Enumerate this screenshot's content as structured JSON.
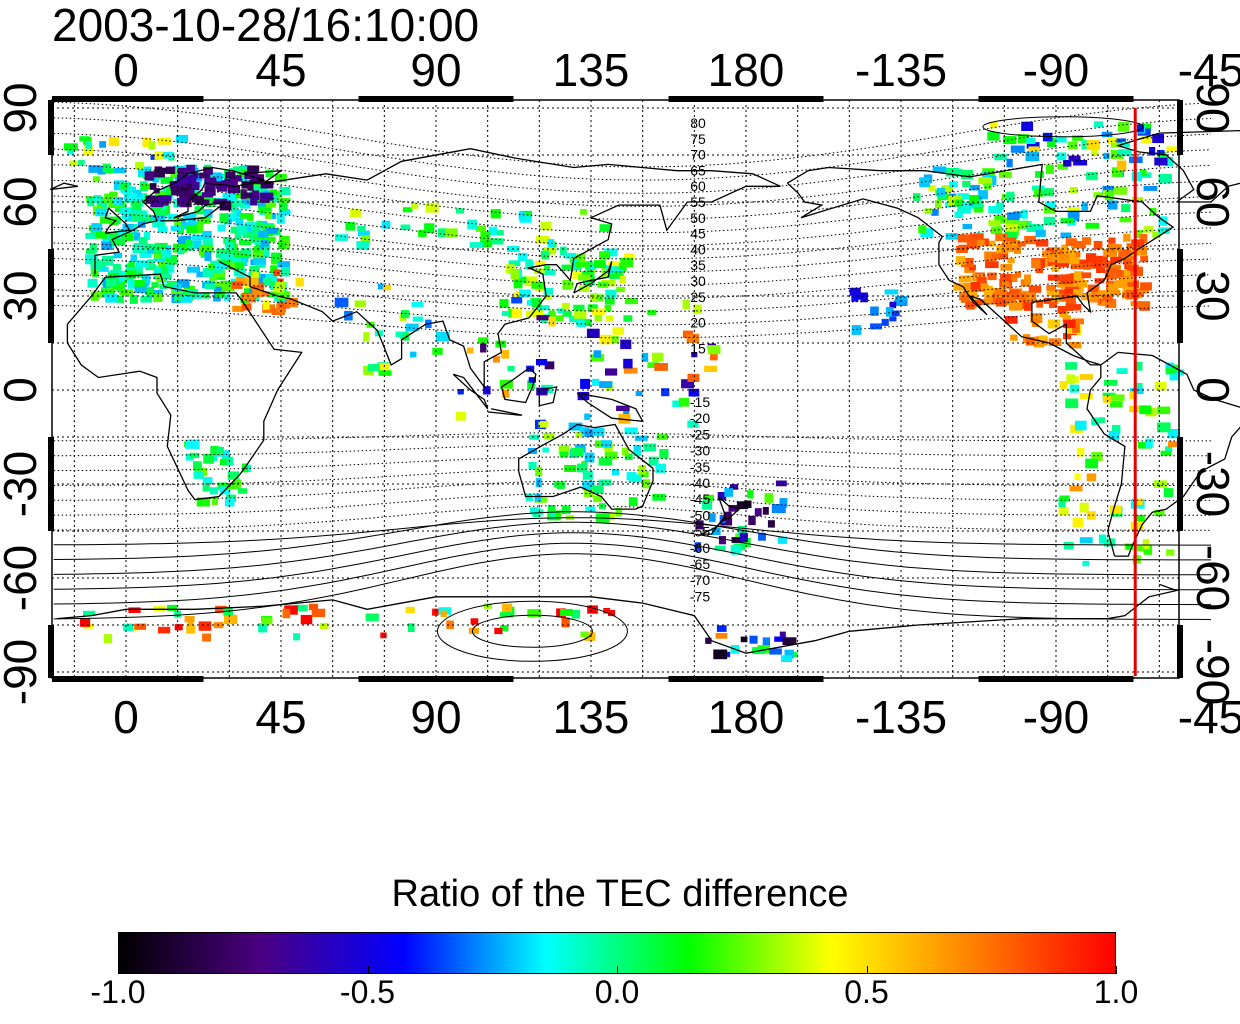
{
  "title": "2003-10-28/16:10:00",
  "map": {
    "lon_labels": [
      "0",
      "45",
      "90",
      "135",
      "180",
      "-135",
      "-90",
      "-45"
    ],
    "lat_labels": [
      "90",
      "60",
      "30",
      "0",
      "-30",
      "-60",
      "-90"
    ],
    "contour_labels_north": [
      "80",
      "75",
      "70",
      "65",
      "60",
      "55",
      "50",
      "45",
      "40",
      "35",
      "30",
      "25",
      "20",
      "15"
    ],
    "contour_labels_south": [
      "-15",
      "-20",
      "-25",
      "-30",
      "-35",
      "-40",
      "-45",
      "-50",
      "-55",
      "-60",
      "-65",
      "-70",
      "-75"
    ],
    "meridian_marker_longitude": -67,
    "marker_color": "#e00000",
    "gridlines": "dotted"
  },
  "colorbar": {
    "title": "Ratio of the TEC difference",
    "ticks": [
      "-1.0",
      "-0.5",
      "0.0",
      "0.5",
      "1.0"
    ],
    "range": [
      -1.0,
      1.0
    ],
    "colors": [
      "#000000",
      "#4b0082",
      "#0000ff",
      "#00ffff",
      "#00ff00",
      "#ffff00",
      "#ff8000",
      "#ff0000"
    ]
  }
}
